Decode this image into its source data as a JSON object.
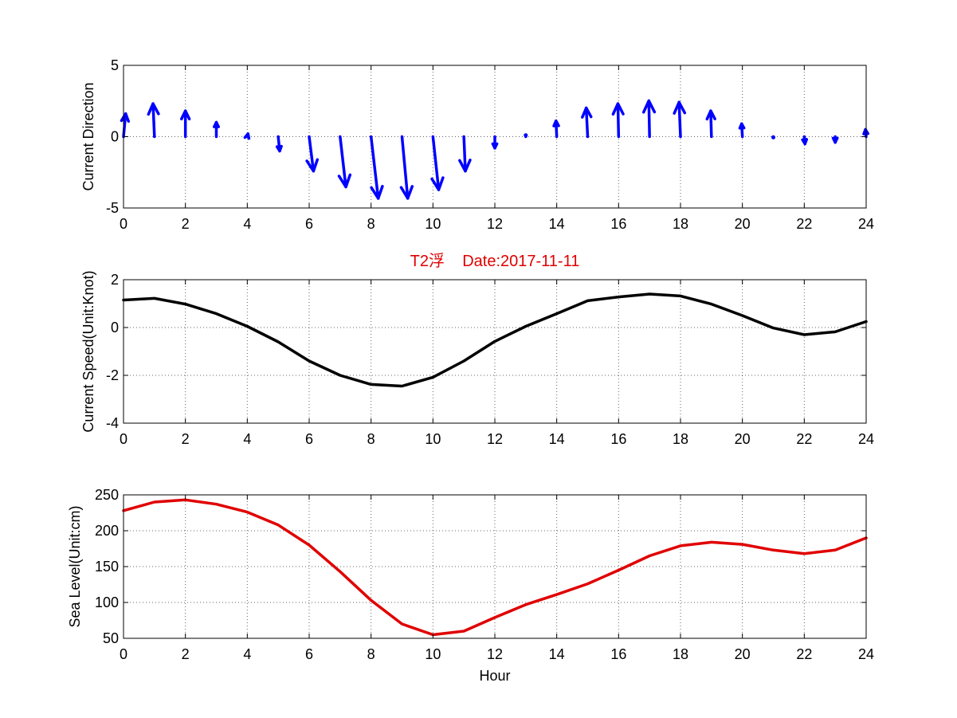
{
  "chart_data": [
    {
      "type": "quiver",
      "ylabel": "Current Direction",
      "xlim": [
        0,
        24
      ],
      "ylim": [
        -5,
        5
      ],
      "xticks": [
        "0",
        "2",
        "4",
        "6",
        "8",
        "10",
        "12",
        "14",
        "16",
        "18",
        "20",
        "22",
        "24"
      ],
      "yticks": [
        "-5",
        "0",
        "5"
      ],
      "grid": true,
      "color": "#0000ff",
      "arrows": [
        {
          "x": 0,
          "u": 0.15,
          "v": 1.6
        },
        {
          "x": 1,
          "u": -0.1,
          "v": 2.3
        },
        {
          "x": 2,
          "u": 0.0,
          "v": 1.8
        },
        {
          "x": 3,
          "u": 0.0,
          "v": 1.0
        },
        {
          "x": 4,
          "u": 0.05,
          "v": 0.2
        },
        {
          "x": 5,
          "u": 0.1,
          "v": -1.0
        },
        {
          "x": 6,
          "u": 0.3,
          "v": -2.4
        },
        {
          "x": 7,
          "u": 0.4,
          "v": -3.5
        },
        {
          "x": 8,
          "u": 0.5,
          "v": -4.3
        },
        {
          "x": 9,
          "u": 0.4,
          "v": -4.3
        },
        {
          "x": 10,
          "u": 0.4,
          "v": -3.7
        },
        {
          "x": 11,
          "u": 0.1,
          "v": -2.4
        },
        {
          "x": 12,
          "u": 0.0,
          "v": -0.8
        },
        {
          "x": 13,
          "u": 0.0,
          "v": 0.1
        },
        {
          "x": 14,
          "u": -0.05,
          "v": 1.1
        },
        {
          "x": 15,
          "u": -0.1,
          "v": 2.0
        },
        {
          "x": 16,
          "u": -0.05,
          "v": 2.3
        },
        {
          "x": 17,
          "u": -0.05,
          "v": 2.5
        },
        {
          "x": 18,
          "u": -0.1,
          "v": 2.4
        },
        {
          "x": 19,
          "u": -0.05,
          "v": 1.8
        },
        {
          "x": 20,
          "u": -0.05,
          "v": 0.9
        },
        {
          "x": 21,
          "u": 0.0,
          "v": -0.05
        },
        {
          "x": 22,
          "u": 0.05,
          "v": -0.5
        },
        {
          "x": 23,
          "u": 0.0,
          "v": -0.4
        },
        {
          "x": 24,
          "u": -0.05,
          "v": 0.5
        }
      ]
    },
    {
      "type": "line",
      "title": "T2浮    Date:2017-11-11",
      "title_color": "#e00000",
      "ylabel": "Current Speed(Unit:Knot)",
      "xlim": [
        0,
        24
      ],
      "ylim": [
        -4,
        2
      ],
      "xticks": [
        "0",
        "2",
        "4",
        "6",
        "8",
        "10",
        "12",
        "14",
        "16",
        "18",
        "20",
        "22",
        "24"
      ],
      "yticks": [
        "-4",
        "-2",
        "0",
        "2"
      ],
      "grid": true,
      "series": [
        {
          "color": "#000000",
          "x": [
            0,
            1,
            2,
            3,
            4,
            5,
            6,
            7,
            8,
            9,
            10,
            11,
            12,
            13,
            14,
            15,
            16,
            17,
            18,
            19,
            20,
            21,
            22,
            23,
            24
          ],
          "y": [
            1.15,
            1.22,
            0.98,
            0.58,
            0.05,
            -0.6,
            -1.4,
            -2.0,
            -2.38,
            -2.45,
            -2.08,
            -1.4,
            -0.58,
            0.05,
            0.58,
            1.12,
            1.28,
            1.4,
            1.32,
            0.98,
            0.5,
            -0.02,
            -0.3,
            -0.18,
            0.25
          ]
        }
      ]
    },
    {
      "type": "line",
      "xlabel": "Hour",
      "ylabel": "Sea Level(Unit:cm)",
      "xlim": [
        0,
        24
      ],
      "ylim": [
        50,
        250
      ],
      "xticks": [
        "0",
        "2",
        "4",
        "6",
        "8",
        "10",
        "12",
        "14",
        "16",
        "18",
        "20",
        "22",
        "24"
      ],
      "yticks": [
        "50",
        "100",
        "150",
        "200",
        "250"
      ],
      "grid": true,
      "series": [
        {
          "color": "#e00000",
          "x": [
            0,
            1,
            2,
            3,
            4,
            5,
            6,
            7,
            8,
            9,
            10,
            11,
            12,
            13,
            14,
            15,
            16,
            17,
            18,
            19,
            20,
            21,
            22,
            23,
            24
          ],
          "y": [
            228,
            240,
            243,
            237,
            226,
            208,
            180,
            143,
            103,
            70,
            55,
            60,
            79,
            97,
            111,
            126,
            145,
            165,
            179,
            184,
            181,
            173,
            168,
            173,
            190
          ]
        }
      ]
    }
  ]
}
